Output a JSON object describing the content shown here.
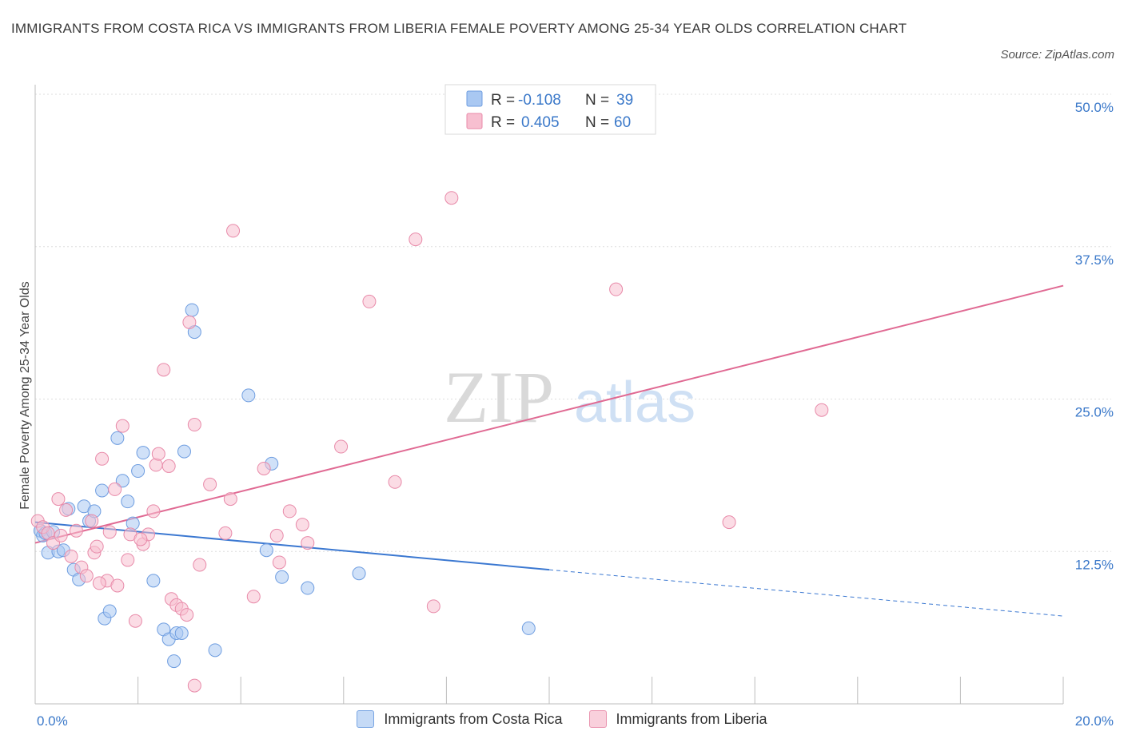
{
  "title": "IMMIGRANTS FROM COSTA RICA VS IMMIGRANTS FROM LIBERIA FEMALE POVERTY AMONG 25-34 YEAR OLDS CORRELATION CHART",
  "source": "Source: ZipAtlas.com",
  "watermark": {
    "zip": "ZIP",
    "atlas": "atlas"
  },
  "legend": {
    "r_label": "R =",
    "n_label": "N =",
    "rows": [
      {
        "r": "-0.108",
        "n": "39",
        "color": "#a9c8f2",
        "stroke": "#6e9de0"
      },
      {
        "r": "0.405",
        "n": "60",
        "color": "#f7bfd0",
        "stroke": "#e88aa9"
      }
    ]
  },
  "bottom_legend": [
    {
      "label": "Immigrants from Costa Rica",
      "color": "#c5daf6",
      "stroke": "#7aa6e3"
    },
    {
      "label": "Immigrants from Liberia",
      "color": "#f9d0dc",
      "stroke": "#ea95b0"
    }
  ],
  "chart_data": {
    "type": "scatter",
    "title": "IMMIGRANTS FROM COSTA RICA VS IMMIGRANTS FROM LIBERIA FEMALE POVERTY AMONG 25-34 YEAR OLDS CORRELATION CHART",
    "xlabel": "",
    "ylabel": "Female Poverty Among 25-34 Year Olds",
    "xlim": [
      0,
      20
    ],
    "ylim": [
      0,
      50
    ],
    "x_tick_labels": [
      "0.0%",
      "20.0%"
    ],
    "y_ticks": [
      12.5,
      25,
      37.5,
      50
    ],
    "y_tick_labels": [
      "12.5%",
      "25.0%",
      "37.5%",
      "50.0%"
    ],
    "grid": true,
    "legend_position": "top-center",
    "series": [
      {
        "name": "Immigrants from Costa Rica",
        "color": "#6e9de0",
        "fill": "#a9c8f2",
        "points": [
          [
            0.1,
            14.2
          ],
          [
            0.15,
            13.8
          ],
          [
            0.2,
            14.0
          ],
          [
            0.25,
            12.4
          ],
          [
            0.35,
            14.1
          ],
          [
            0.45,
            12.5
          ],
          [
            0.55,
            12.6
          ],
          [
            0.65,
            16.0
          ],
          [
            0.75,
            11.0
          ],
          [
            0.85,
            10.2
          ],
          [
            0.95,
            16.2
          ],
          [
            1.05,
            15.0
          ],
          [
            1.15,
            15.8
          ],
          [
            1.3,
            17.5
          ],
          [
            1.35,
            7.0
          ],
          [
            1.45,
            7.6
          ],
          [
            1.6,
            21.8
          ],
          [
            1.7,
            18.3
          ],
          [
            1.8,
            16.6
          ],
          [
            1.9,
            14.8
          ],
          [
            2.0,
            19.1
          ],
          [
            2.1,
            20.6
          ],
          [
            2.3,
            10.1
          ],
          [
            2.5,
            6.1
          ],
          [
            2.6,
            5.3
          ],
          [
            2.7,
            3.5
          ],
          [
            2.75,
            5.8
          ],
          [
            2.85,
            5.8
          ],
          [
            2.9,
            20.7
          ],
          [
            3.05,
            32.3
          ],
          [
            3.1,
            30.5
          ],
          [
            3.5,
            4.4
          ],
          [
            4.15,
            25.3
          ],
          [
            4.5,
            12.6
          ],
          [
            4.6,
            19.7
          ],
          [
            4.8,
            10.4
          ],
          [
            5.3,
            9.5
          ],
          [
            6.3,
            10.7
          ],
          [
            9.6,
            6.2
          ]
        ]
      },
      {
        "name": "Immigrants from Liberia",
        "color": "#e88aa9",
        "fill": "#f7bfd0",
        "points": [
          [
            0.05,
            15.0
          ],
          [
            0.15,
            14.5
          ],
          [
            0.25,
            14.0
          ],
          [
            0.35,
            13.2
          ],
          [
            0.45,
            16.8
          ],
          [
            0.5,
            13.8
          ],
          [
            0.6,
            15.9
          ],
          [
            0.7,
            12.1
          ],
          [
            0.8,
            14.2
          ],
          [
            0.9,
            11.2
          ],
          [
            1.0,
            10.5
          ],
          [
            1.1,
            15.0
          ],
          [
            1.15,
            12.4
          ],
          [
            1.2,
            12.9
          ],
          [
            1.3,
            20.1
          ],
          [
            1.4,
            10.1
          ],
          [
            1.45,
            14.1
          ],
          [
            1.55,
            17.6
          ],
          [
            1.6,
            9.7
          ],
          [
            1.7,
            22.8
          ],
          [
            1.8,
            11.8
          ],
          [
            1.85,
            13.9
          ],
          [
            1.95,
            6.8
          ],
          [
            2.1,
            13.1
          ],
          [
            2.2,
            13.9
          ],
          [
            2.3,
            15.8
          ],
          [
            2.35,
            19.6
          ],
          [
            2.4,
            20.5
          ],
          [
            2.5,
            27.4
          ],
          [
            2.6,
            19.5
          ],
          [
            2.65,
            8.6
          ],
          [
            2.75,
            8.1
          ],
          [
            2.85,
            7.8
          ],
          [
            2.95,
            7.3
          ],
          [
            3.0,
            31.3
          ],
          [
            3.1,
            22.9
          ],
          [
            3.1,
            1.5
          ],
          [
            3.2,
            11.4
          ],
          [
            3.4,
            18.0
          ],
          [
            3.7,
            14.0
          ],
          [
            3.8,
            16.8
          ],
          [
            3.85,
            38.8
          ],
          [
            4.25,
            8.8
          ],
          [
            4.45,
            19.3
          ],
          [
            4.7,
            13.8
          ],
          [
            4.75,
            11.6
          ],
          [
            4.95,
            15.8
          ],
          [
            5.2,
            14.7
          ],
          [
            5.3,
            13.2
          ],
          [
            5.95,
            21.1
          ],
          [
            6.5,
            33.0
          ],
          [
            7.0,
            18.2
          ],
          [
            7.4,
            38.1
          ],
          [
            7.75,
            8.0
          ],
          [
            8.1,
            41.5
          ],
          [
            11.3,
            34.0
          ],
          [
            13.5,
            14.9
          ],
          [
            15.3,
            24.1
          ],
          [
            2.05,
            13.5
          ],
          [
            1.25,
            9.9
          ]
        ]
      }
    ],
    "trend_lines": [
      {
        "series": "Immigrants from Costa Rica",
        "x": [
          0.0,
          10.0
        ],
        "y": [
          14.9,
          11.0
        ],
        "dashed_extension_to_x": 20.0,
        "dashed_extension_y": 7.2
      },
      {
        "series": "Immigrants from Liberia",
        "x": [
          0.0,
          20.0
        ],
        "y": [
          13.2,
          34.3
        ]
      }
    ]
  }
}
